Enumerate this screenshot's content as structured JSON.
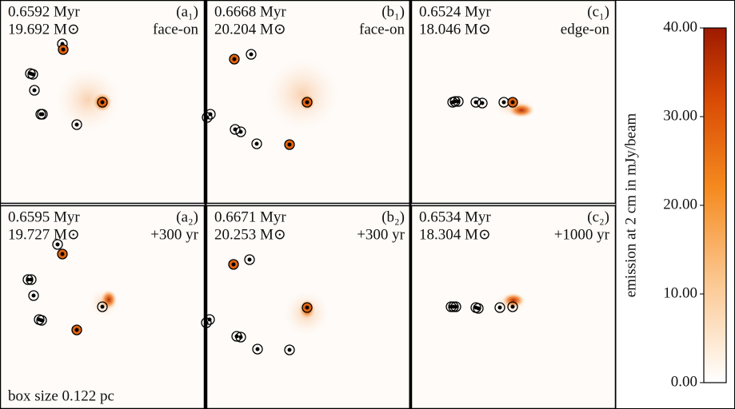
{
  "panels": [
    {
      "time": "0.6592 Myr",
      "mass": "19.692 M⊙",
      "tag": "(a₁)",
      "view": "face-on"
    },
    {
      "time": "0.6668 Myr",
      "mass": "20.204 M⊙",
      "tag": "(b₁)",
      "view": "face-on"
    },
    {
      "time": "0.6524 Myr",
      "mass": "18.046 M⊙",
      "tag": "(c₁)",
      "view": "edge-on"
    },
    {
      "time": "0.6595 Myr",
      "mass": "19.727 M⊙",
      "tag": "(a₂)",
      "view": "+300 yr"
    },
    {
      "time": "0.6671 Myr",
      "mass": "20.253 M⊙",
      "tag": "(b₂)",
      "view": "+300 yr"
    },
    {
      "time": "0.6534 Myr",
      "mass": "18.304 M⊙",
      "tag": "(c₂)",
      "view": "+1000 yr"
    }
  ],
  "scale_note": "box size 0.122 pc",
  "colorbar": {
    "label": "emission at 2 cm in mJy/beam",
    "lim": [
      0,
      40
    ],
    "ticks": [
      {
        "value": 0,
        "label": "0.00"
      },
      {
        "value": 10,
        "label": "10.00"
      },
      {
        "value": 20,
        "label": "20.00"
      },
      {
        "value": 30,
        "label": "30.00"
      },
      {
        "value": 40,
        "label": "40.00"
      }
    ]
  }
}
